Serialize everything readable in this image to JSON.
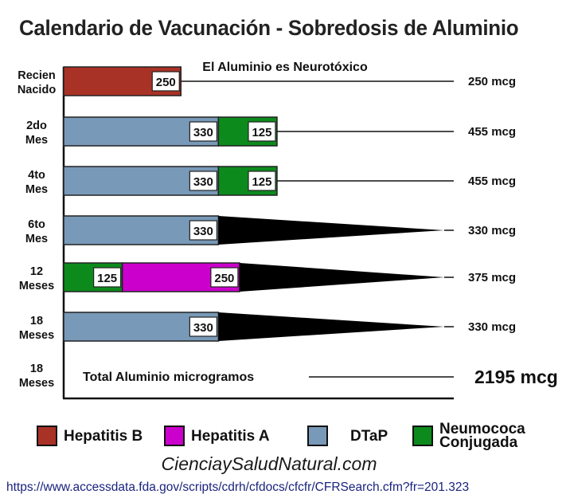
{
  "chart_data": {
    "type": "bar",
    "stacked": true,
    "title": "Calendario de Vacunación - Sobredosis de Aluminio",
    "subtitle": "El Aluminio es Neurotóxico",
    "unit": "mcg",
    "categories": [
      {
        "line1": "Recien",
        "line2": "Nacido"
      },
      {
        "line1": "2do",
        "line2": "Mes"
      },
      {
        "line1": "4to",
        "line2": "Mes"
      },
      {
        "line1": "6to",
        "line2": "Mes"
      },
      {
        "line1": "12",
        "line2": "Meses"
      },
      {
        "line1": "18",
        "line2": "Meses"
      }
    ],
    "rows": [
      {
        "segments": [
          {
            "series": "Hepatitis B",
            "value": 250
          }
        ],
        "total": "250 mcg",
        "wedge": false
      },
      {
        "segments": [
          {
            "series": "DTaP",
            "value": 330
          },
          {
            "series": "Neumococa Conjugada",
            "value": 125
          }
        ],
        "total": "455 mcg",
        "wedge": false
      },
      {
        "segments": [
          {
            "series": "DTaP",
            "value": 330
          },
          {
            "series": "Neumococa Conjugada",
            "value": 125
          }
        ],
        "total": "455 mcg",
        "wedge": false
      },
      {
        "segments": [
          {
            "series": "DTaP",
            "value": 330
          }
        ],
        "total": "330 mcg",
        "wedge": true
      },
      {
        "segments": [
          {
            "series": "Neumococa Conjugada",
            "value": 125
          },
          {
            "series": "Hepatitis A",
            "value": 250
          }
        ],
        "total": "375 mcg",
        "wedge": true
      },
      {
        "segments": [
          {
            "series": "DTaP",
            "value": 330
          }
        ],
        "total": "330 mcg",
        "wedge": true
      }
    ],
    "summary": {
      "line1": "18",
      "line2": "Meses",
      "label": "Total Aluminio microgramos",
      "value": "2195 mcg"
    },
    "series": [
      {
        "name": "Hepatitis B",
        "color": "#a93226"
      },
      {
        "name": "Hepatitis A",
        "color": "#cc00cc"
      },
      {
        "name": "DTaP",
        "color": "#7899b8"
      },
      {
        "name": "Neumococa Conjugada",
        "color": "#0d8a1c"
      }
    ]
  },
  "legend": [
    {
      "label": "Hepatitis B",
      "color": "#a93226",
      "icon": "hepatitis-b-swatch"
    },
    {
      "label": "Hepatitis A",
      "color": "#cc00cc",
      "icon": "hepatitis-a-swatch"
    },
    {
      "label": "DTaP",
      "color": "#7899b8",
      "icon": "dtap-swatch"
    },
    {
      "label": "Neumococa\nConjugada",
      "color": "#0d8a1c",
      "icon": "neumococa-swatch"
    }
  ],
  "footer": {
    "site": "CienciaySaludNatural.com",
    "url": "https://www.accessdata.fda.gov/scripts/cdrh/cfdocs/cfcfr/CFRSearch.cfm?fr=201.323"
  }
}
